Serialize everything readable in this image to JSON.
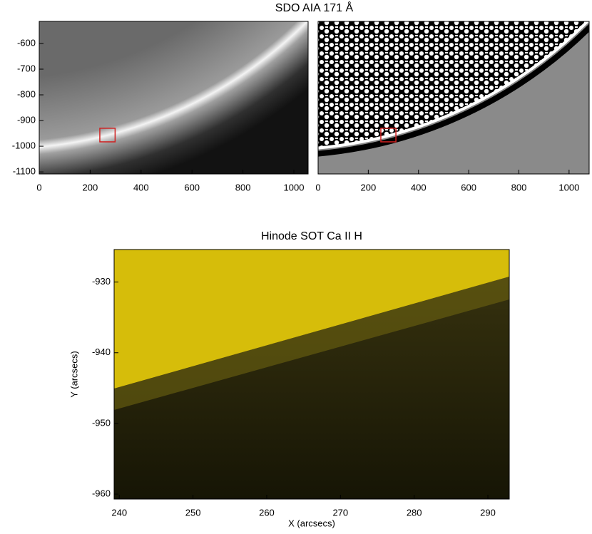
{
  "chart_data": [
    {
      "type": "image",
      "title": "SDO AIA 171 Å",
      "xlim": [
        0,
        1056
      ],
      "xticks": [
        0,
        200,
        400,
        600,
        800,
        1000
      ],
      "ylim": [
        -1108,
        -514
      ],
      "yticks": [
        -600,
        -700,
        -800,
        -900,
        -1000,
        -1100
      ],
      "box": {
        "x": [
          238,
          298
        ],
        "y": [
          -983,
          -930
        ],
        "color": "#d02020"
      }
    },
    {
      "type": "image",
      "xlim": [
        0,
        1080
      ],
      "xticks": [
        0,
        200,
        400,
        600,
        800,
        1000
      ],
      "ylim": [
        -1108,
        -514
      ],
      "box": {
        "x": [
          250,
          310
        ],
        "y": [
          -983,
          -930
        ],
        "color": "#d02020"
      }
    },
    {
      "type": "image",
      "title": "Hinode SOT Ca II H",
      "x_label": "X (arcsecs)",
      "y_label": "Y (arcsecs)",
      "xlim": [
        239.3,
        292.9
      ],
      "xticks": [
        240,
        250,
        260,
        270,
        280,
        290
      ],
      "ylim": [
        -960.7,
        -925.4
      ],
      "yticks": [
        -930,
        -940,
        -950,
        -960
      ]
    }
  ]
}
